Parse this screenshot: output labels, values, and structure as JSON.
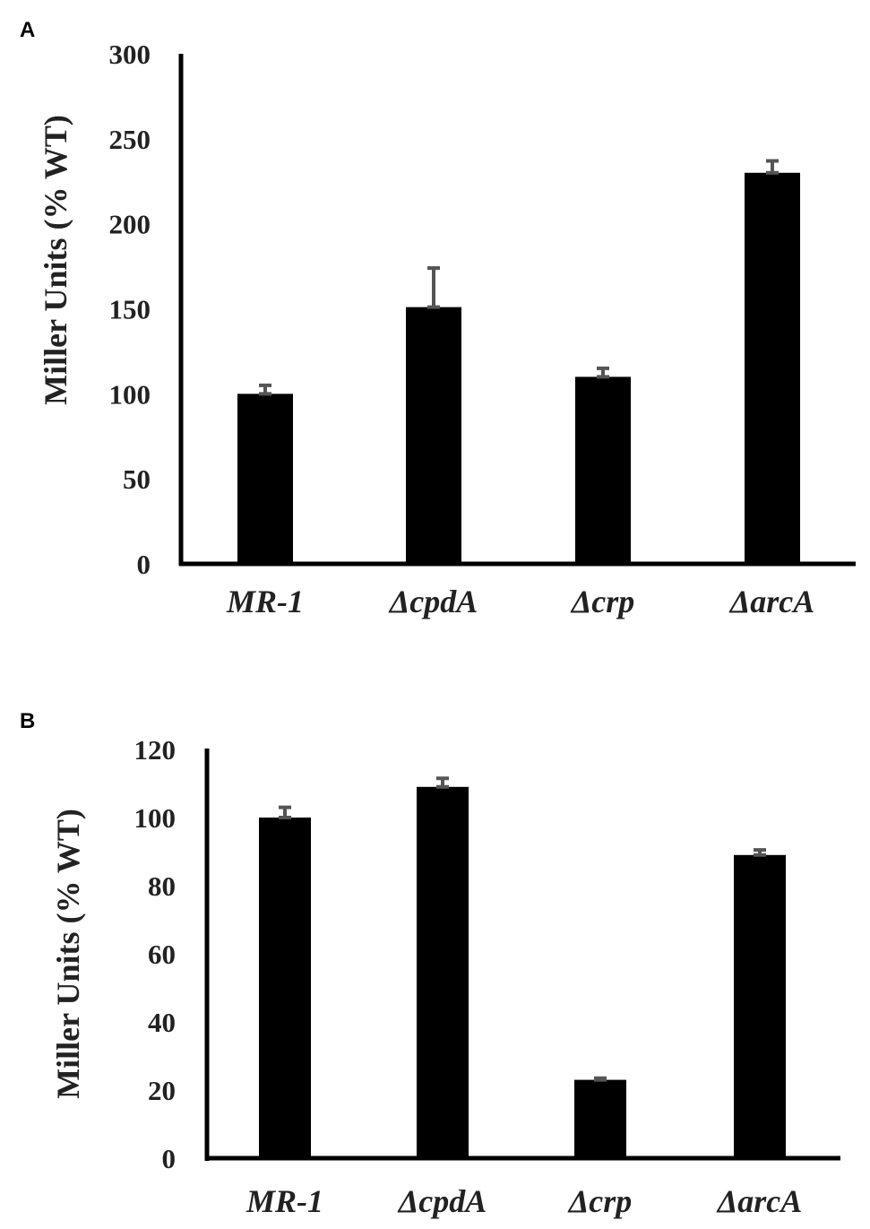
{
  "chart_data": [
    {
      "type": "bar",
      "panel": "A",
      "categories": [
        "MR-1",
        "ΔcpdA",
        "Δcrp",
        "ΔarcA"
      ],
      "values": [
        100,
        151,
        110,
        230
      ],
      "errors": [
        5,
        23,
        5,
        7
      ],
      "ylabel": "Miller Units (% WT)",
      "xlabel": "",
      "ylim": [
        0,
        300
      ],
      "yticks": [
        "0",
        "50",
        "100",
        "150",
        "200",
        "250",
        "300"
      ],
      "grid": false,
      "bar_color": "#000000",
      "error_color": "#555555"
    },
    {
      "type": "bar",
      "panel": "B",
      "categories": [
        "MR-1",
        "ΔcpdA",
        "Δcrp",
        "ΔarcA"
      ],
      "values": [
        100,
        109,
        23,
        89
      ],
      "errors": [
        3,
        2.5,
        0.5,
        1.5
      ],
      "ylabel": "Miller Units (% WT)",
      "xlabel": "",
      "ylim": [
        0,
        120
      ],
      "yticks": [
        "0",
        "20",
        "40",
        "60",
        "80",
        "100",
        "120"
      ],
      "grid": false,
      "bar_color": "#000000",
      "error_color": "#555555"
    }
  ]
}
